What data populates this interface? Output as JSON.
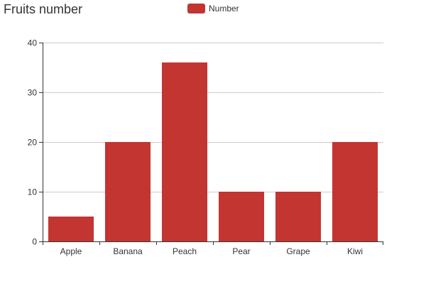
{
  "chart_data": {
    "type": "bar",
    "title": "Fruits number",
    "xlabel": "",
    "ylabel": "",
    "categories": [
      "Apple",
      "Banana",
      "Peach",
      "Pear",
      "Grape",
      "Kiwi"
    ],
    "series": [
      {
        "name": "Number",
        "values": [
          5,
          20,
          36,
          10,
          10,
          20
        ]
      }
    ],
    "ylim": [
      0,
      40
    ],
    "yticks": [
      0,
      10,
      20,
      30,
      40
    ],
    "grid": true,
    "legend_position": "top-center",
    "colors": {
      "bar": "#c23531",
      "grid": "#cccccc",
      "axis": "#333333"
    }
  }
}
